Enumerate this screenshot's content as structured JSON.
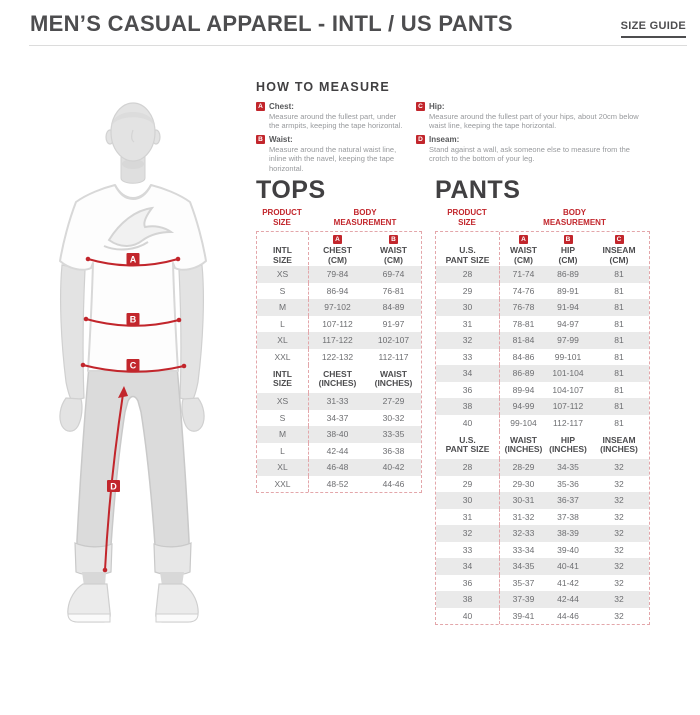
{
  "colors": {
    "accent_red": "#C2262C",
    "accent_light": "#E3A6AA",
    "header_dark": "#4D4D4F",
    "row_stripe": "#EAEAEA"
  },
  "header": {
    "title": "MEN’S CASUAL APPAREL - INTL / US PANTS",
    "size_guide_label": "SIZE GUIDE"
  },
  "how_to_measure": {
    "title": "HOW TO MEASURE",
    "items": [
      {
        "key": "A",
        "name": "Chest:",
        "description": "Measure around the fullest part, under the armpits, keeping the tape horizontal."
      },
      {
        "key": "B",
        "name": "Waist:",
        "description": "Measure around the natural waist line, inline with the navel, keeping the tape horizontal."
      },
      {
        "key": "C",
        "name": "Hip:",
        "description": "Measure around the fullest part of your hips, about 20cm below waist line, keeping the tape horizontal."
      },
      {
        "key": "D",
        "name": "Inseam:",
        "description": "Stand against a wall, ask someone else to measure from the crotch to the bottom of your leg."
      }
    ]
  },
  "figure": {
    "labels": [
      "A",
      "B",
      "C",
      "D"
    ]
  },
  "tops": {
    "title": "TOPS",
    "group_headers": {
      "product_size": "PRODUCT\nSIZE",
      "body_measurement": "BODY\nMEASUREMENT"
    },
    "cm_header": {
      "size": "INTL\nSIZE",
      "badges": [
        "A",
        "B"
      ],
      "cols": [
        "CHEST\n(CM)",
        "WAIST\n(CM)"
      ]
    },
    "cm_rows": [
      [
        "XS",
        "79-84",
        "69-74"
      ],
      [
        "S",
        "86-94",
        "76-81"
      ],
      [
        "M",
        "97-102",
        "84-89"
      ],
      [
        "L",
        "107-112",
        "91-97"
      ],
      [
        "XL",
        "117-122",
        "102-107"
      ],
      [
        "XXL",
        "122-132",
        "112-117"
      ]
    ],
    "in_header": {
      "size": "INTL\nSIZE",
      "cols": [
        "CHEST\n(INCHES)",
        "WAIST\n(INCHES)"
      ]
    },
    "in_rows": [
      [
        "XS",
        "31-33",
        "27-29"
      ],
      [
        "S",
        "34-37",
        "30-32"
      ],
      [
        "M",
        "38-40",
        "33-35"
      ],
      [
        "L",
        "42-44",
        "36-38"
      ],
      [
        "XL",
        "46-48",
        "40-42"
      ],
      [
        "XXL",
        "48-52",
        "44-46"
      ]
    ]
  },
  "pants": {
    "title": "PANTS",
    "group_headers": {
      "product_size": "PRODUCT\nSIZE",
      "body_measurement": "BODY\nMEASUREMENT"
    },
    "cm_header": {
      "size": "U.S.\nPANT SIZE",
      "badges": [
        "A",
        "B",
        "C"
      ],
      "cols": [
        "WAIST\n(CM)",
        "HIP\n(CM)",
        "INSEAM\n(CM)"
      ]
    },
    "cm_rows": [
      [
        "28",
        "71-74",
        "86-89",
        "81"
      ],
      [
        "29",
        "74-76",
        "89-91",
        "81"
      ],
      [
        "30",
        "76-78",
        "91-94",
        "81"
      ],
      [
        "31",
        "78-81",
        "94-97",
        "81"
      ],
      [
        "32",
        "81-84",
        "97-99",
        "81"
      ],
      [
        "33",
        "84-86",
        "99-101",
        "81"
      ],
      [
        "34",
        "86-89",
        "101-104",
        "81"
      ],
      [
        "36",
        "89-94",
        "104-107",
        "81"
      ],
      [
        "38",
        "94-99",
        "107-112",
        "81"
      ],
      [
        "40",
        "99-104",
        "112-117",
        "81"
      ]
    ],
    "in_header": {
      "size": "U.S.\nPANT SIZE",
      "cols": [
        "WAIST\n(INCHES)",
        "HIP\n(INCHES)",
        "INSEAM\n(INCHES)"
      ]
    },
    "in_rows": [
      [
        "28",
        "28-29",
        "34-35",
        "32"
      ],
      [
        "29",
        "29-30",
        "35-36",
        "32"
      ],
      [
        "30",
        "30-31",
        "36-37",
        "32"
      ],
      [
        "31",
        "31-32",
        "37-38",
        "32"
      ],
      [
        "32",
        "32-33",
        "38-39",
        "32"
      ],
      [
        "33",
        "33-34",
        "39-40",
        "32"
      ],
      [
        "34",
        "34-35",
        "40-41",
        "32"
      ],
      [
        "36",
        "35-37",
        "41-42",
        "32"
      ],
      [
        "38",
        "37-39",
        "42-44",
        "32"
      ],
      [
        "40",
        "39-41",
        "44-46",
        "32"
      ]
    ]
  }
}
